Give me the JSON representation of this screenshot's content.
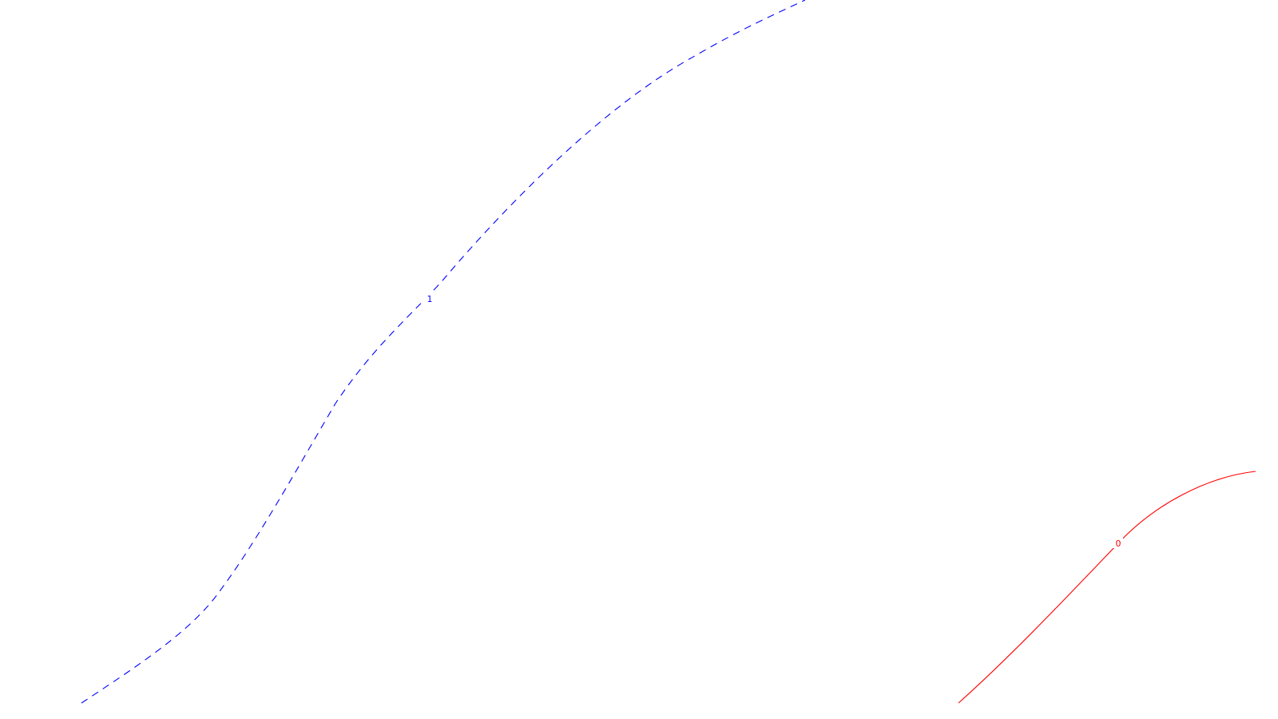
{
  "curves": [
    {
      "id": "curve-1",
      "label": "1",
      "color": "#0000ff",
      "line_style": "dashed"
    },
    {
      "id": "curve-0",
      "label": "0",
      "color": "#ff0000",
      "line_style": "solid"
    }
  ]
}
